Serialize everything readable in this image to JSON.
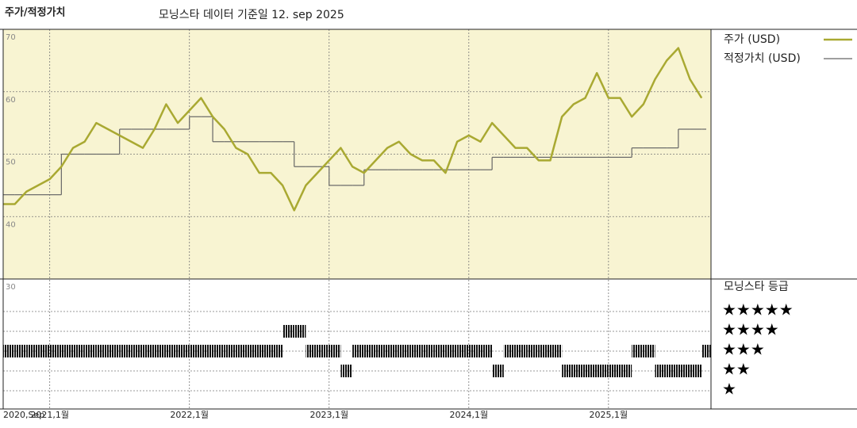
{
  "chart_data": {
    "type": "line",
    "title": "주가/적정가치",
    "subtitle": "모닝스타 데이터 기준일 12. sep 2025",
    "categories": [
      "2020,Sep",
      null,
      null,
      null,
      "2021,1월",
      null,
      null,
      null,
      null,
      null,
      null,
      null,
      null,
      null,
      null,
      null,
      "2022,1월",
      null,
      null,
      null,
      null,
      null,
      null,
      null,
      null,
      null,
      null,
      null,
      "2023,1월",
      null,
      null,
      null,
      null,
      null,
      null,
      null,
      null,
      null,
      null,
      null,
      "2024,1월",
      null,
      null,
      null,
      null,
      null,
      null,
      null,
      null,
      null,
      null,
      null,
      "2025,1월",
      null,
      null,
      null,
      null,
      null,
      null,
      null,
      null
    ],
    "ylim": [
      30,
      70
    ],
    "yticks": [
      30,
      40,
      50,
      60,
      70
    ],
    "grid": true,
    "series": [
      {
        "name": "주가 (USD)",
        "color": "#a9a932",
        "values": [
          42,
          42,
          44,
          45,
          46,
          48,
          51,
          52,
          55,
          54,
          53,
          52,
          51,
          54,
          58,
          55,
          57,
          59,
          56,
          54,
          51,
          50,
          47,
          47,
          45,
          41,
          45,
          47,
          49,
          51,
          48,
          47,
          49,
          51,
          52,
          50,
          49,
          49,
          47,
          52,
          53,
          52,
          55,
          53,
          51,
          51,
          49,
          49,
          56,
          58,
          59,
          63,
          59,
          59,
          56,
          58,
          62,
          65,
          67,
          62,
          59
        ]
      },
      {
        "name": "적정가치 (USD)",
        "color": "#666666",
        "values": [
          43.5,
          43.5,
          43.5,
          43.5,
          43.5,
          50,
          50,
          50,
          50,
          50,
          54,
          54,
          54,
          54,
          54,
          54,
          56,
          56,
          52,
          52,
          52,
          52,
          52,
          52,
          52,
          48,
          48,
          48,
          45,
          45,
          45,
          47.5,
          47.5,
          47.5,
          47.5,
          47.5,
          47.5,
          47.5,
          47.5,
          47.5,
          47.5,
          47.5,
          49.5,
          49.5,
          49.5,
          49.5,
          49.5,
          49.5,
          49.5,
          49.5,
          49.5,
          49.5,
          49.5,
          49.5,
          51,
          51,
          51,
          51,
          54,
          54,
          54
        ]
      }
    ],
    "star_rating": {
      "title": "모닝스타 등급",
      "levels": [
        {
          "value": 5,
          "label": "★★★★★"
        },
        {
          "value": 4,
          "label": "★★★★"
        },
        {
          "value": 3,
          "label": "★★★"
        },
        {
          "value": 2,
          "label": "★★"
        },
        {
          "value": 1,
          "label": "★"
        }
      ],
      "values": [
        3,
        3,
        3,
        3,
        3,
        3,
        3,
        3,
        3,
        3,
        3,
        3,
        3,
        3,
        3,
        3,
        3,
        3,
        3,
        3,
        3,
        3,
        3,
        3,
        4,
        4,
        3,
        3,
        3,
        2,
        3,
        3,
        3,
        3,
        3,
        3,
        3,
        3,
        3,
        3,
        3,
        3,
        2,
        3,
        3,
        3,
        3,
        3,
        2,
        2,
        2,
        2,
        2,
        2,
        3,
        3,
        2,
        2,
        2,
        2,
        3
      ]
    }
  }
}
